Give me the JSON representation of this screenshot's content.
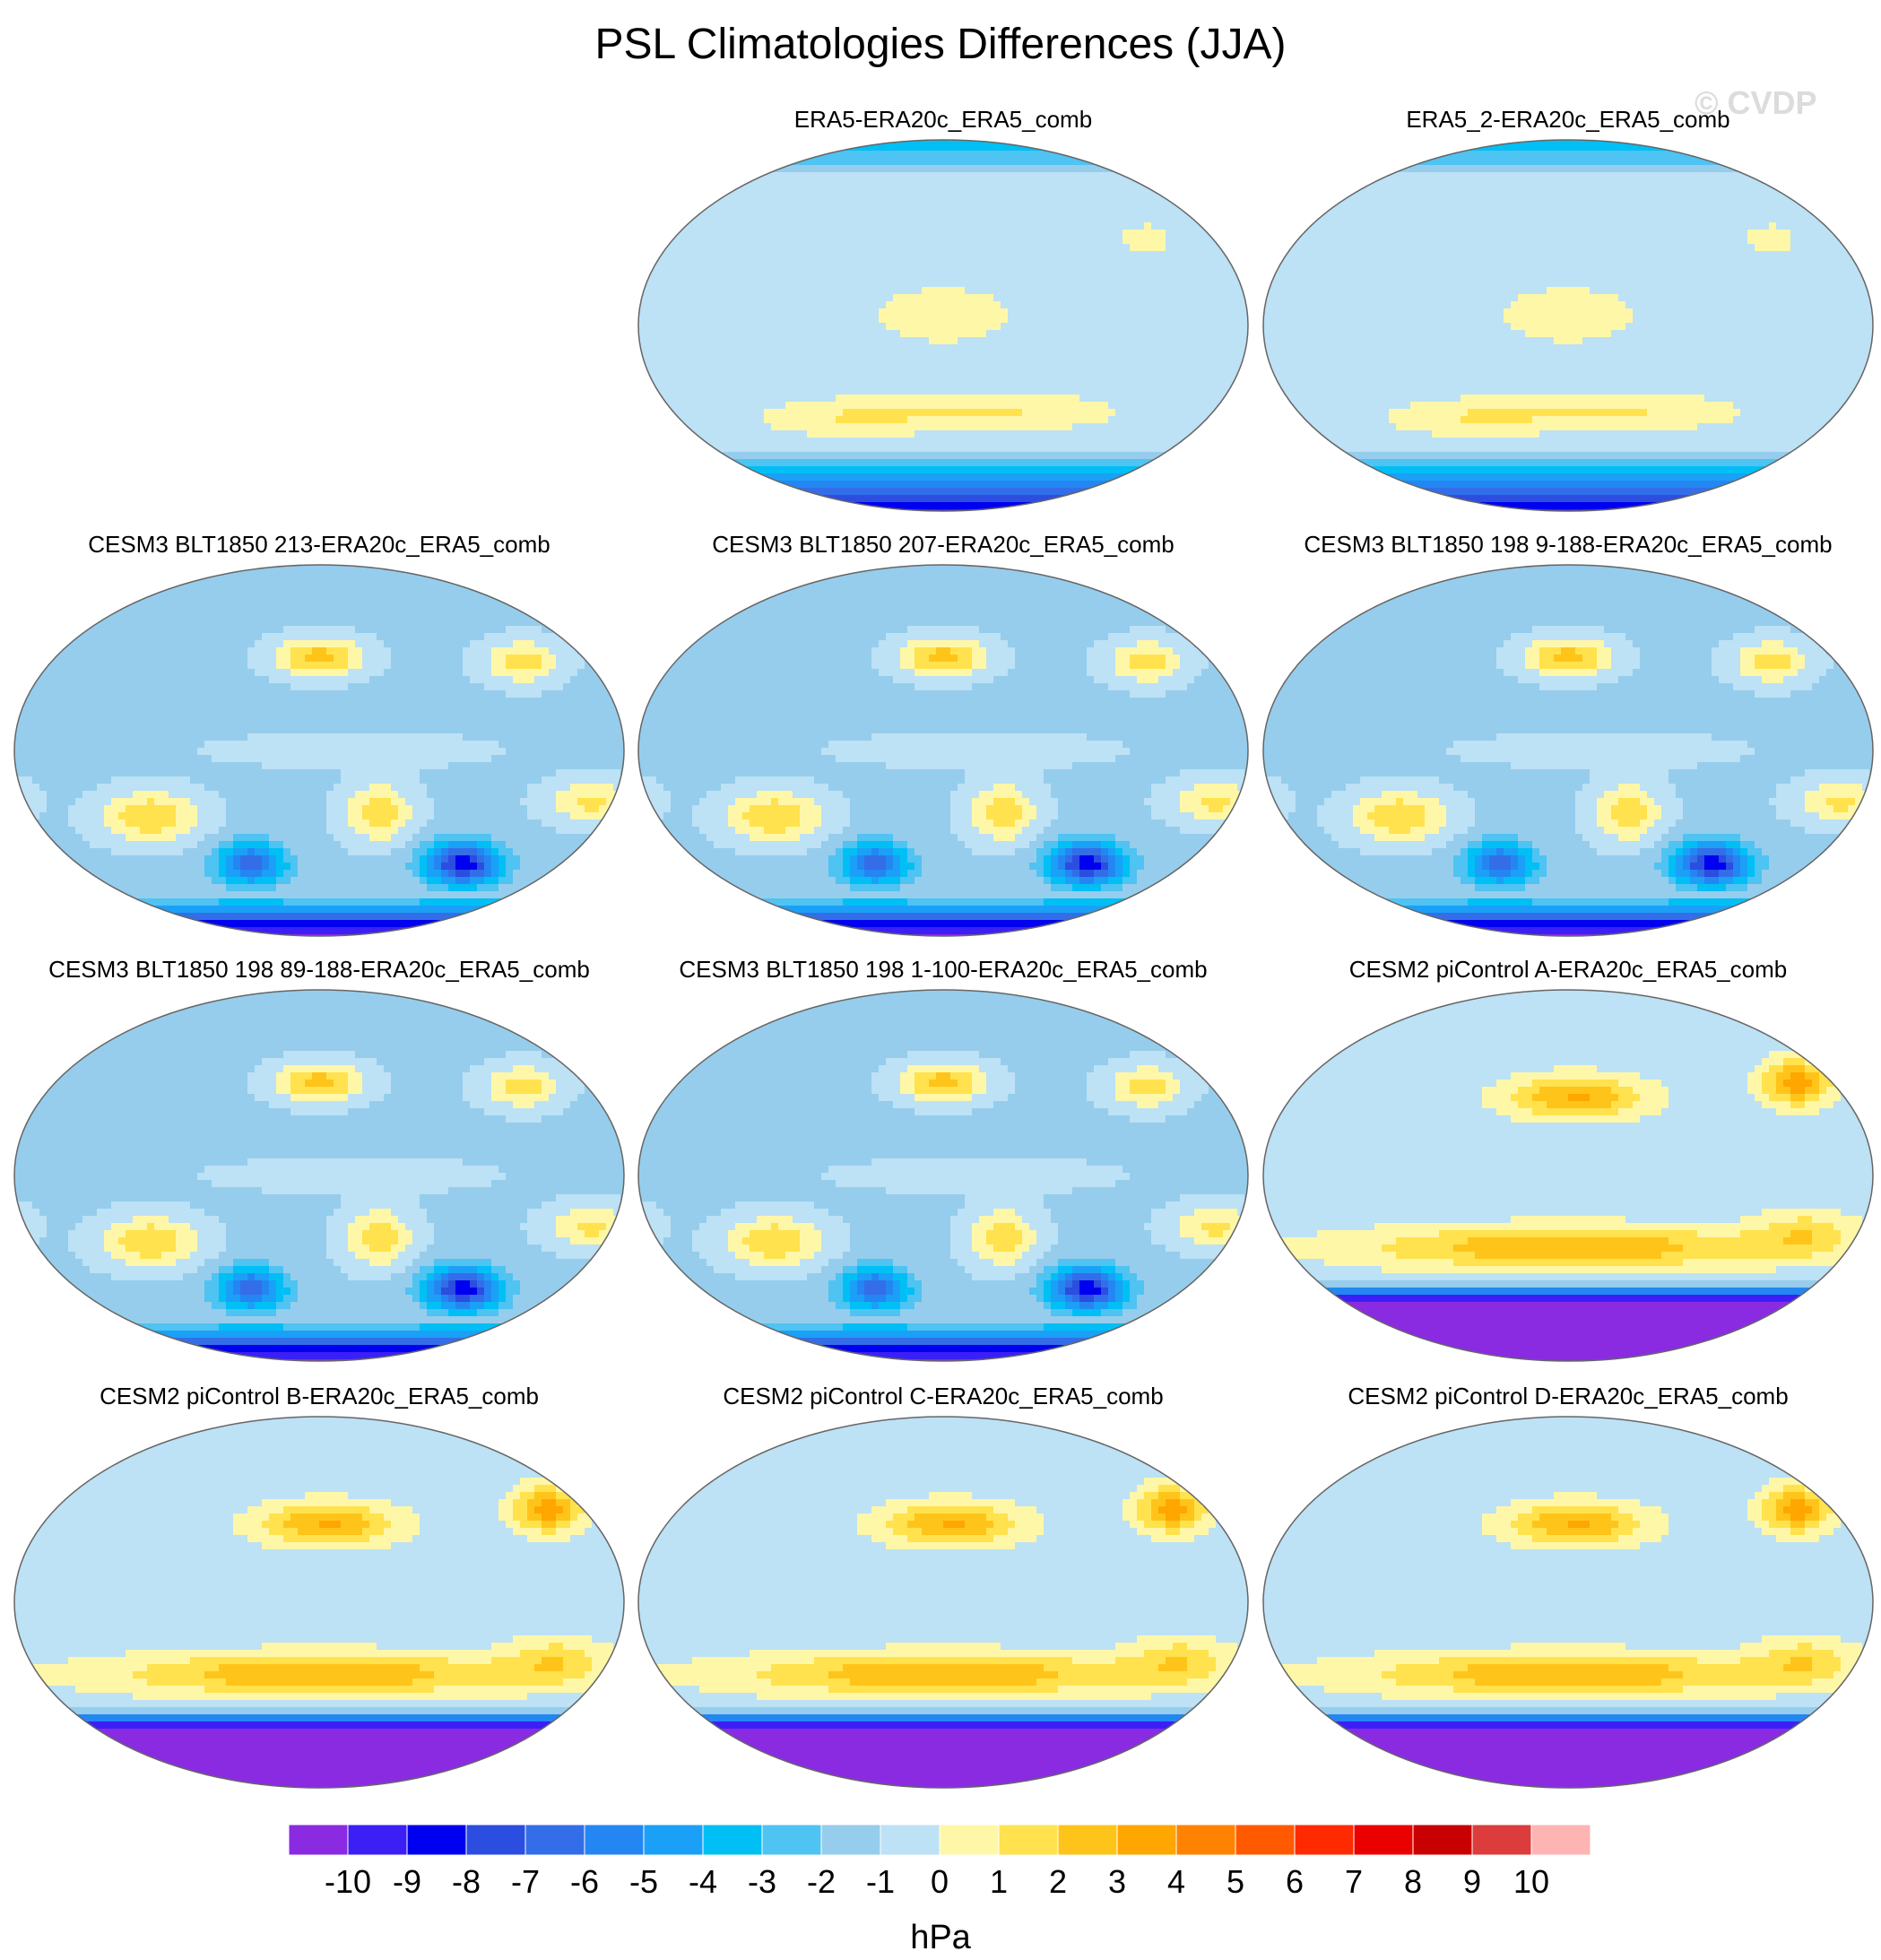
{
  "title": "PSL Climatologies Differences (JJA)",
  "watermark": "© CVDP",
  "chart_data": {
    "type": "heatmap",
    "projection": "robinson",
    "title": "PSL Climatologies Differences (JJA)",
    "units": "hPa",
    "contour_levels": [
      -10,
      -9,
      -8,
      -7,
      -6,
      -5,
      -4,
      -3,
      -2,
      -1,
      0,
      1,
      2,
      3,
      4,
      5,
      6,
      7,
      8,
      9,
      10
    ],
    "colorbar_labels": [
      "-10",
      "-9",
      "-8",
      "-7",
      "-6",
      "-5",
      "-4",
      "-3",
      "-2",
      "-1",
      "0",
      "1",
      "2",
      "3",
      "4",
      "5",
      "6",
      "7",
      "8",
      "9",
      "10"
    ],
    "colors": [
      "#8a2be2",
      "#3b1ff5",
      "#0000f0",
      "#2b4de0",
      "#336ee8",
      "#2486f2",
      "#1ba0f7",
      "#00bff5",
      "#4fc3f2",
      "#96cdec",
      "#bde1f5",
      "#fff7a8",
      "#ffe24d",
      "#ffc41a",
      "#ffa600",
      "#ff8200",
      "#ff5a00",
      "#ff2a00",
      "#eb0000",
      "#c80000",
      "#dc3c3c",
      "#ffb4b4"
    ],
    "panels": [
      {
        "title": "ERA5-ERA20c_ERA5_comb",
        "pattern": "era5"
      },
      {
        "title": "ERA5_2-ERA20c_ERA5_comb",
        "pattern": "era5"
      },
      {
        "title": "CESM3 BLT1850 213-ERA20c_ERA5_comb",
        "pattern": "cesm3"
      },
      {
        "title": "CESM3 BLT1850 207-ERA20c_ERA5_comb",
        "pattern": "cesm3"
      },
      {
        "title": "CESM3 BLT1850 198 9-188-ERA20c_ERA5_comb",
        "pattern": "cesm3"
      },
      {
        "title": "CESM3 BLT1850 198 89-188-ERA20c_ERA5_comb",
        "pattern": "cesm3"
      },
      {
        "title": "CESM3 BLT1850 198 1-100-ERA20c_ERA5_comb",
        "pattern": "cesm3"
      },
      {
        "title": "CESM2 piControl A-ERA20c_ERA5_comb",
        "pattern": "cesm2"
      },
      {
        "title": "CESM2 piControl B-ERA20c_ERA5_comb",
        "pattern": "cesm2"
      },
      {
        "title": "CESM2 piControl C-ERA20c_ERA5_comb",
        "pattern": "cesm2"
      },
      {
        "title": "CESM2 piControl D-ERA20c_ERA5_comb",
        "pattern": "cesm2"
      }
    ]
  }
}
